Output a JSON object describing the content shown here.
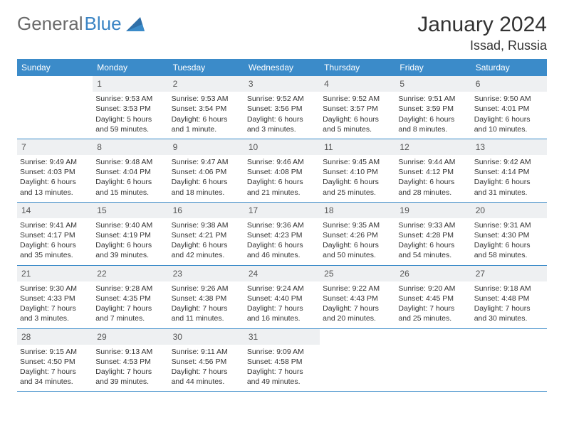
{
  "brand": {
    "part1": "General",
    "part2": "Blue"
  },
  "title": "January 2024",
  "location": "Issad, Russia",
  "colors": {
    "header_bg": "#3b8bc9",
    "header_text": "#ffffff",
    "daynum_bg": "#eef0f2",
    "border": "#3b8bc9",
    "logo_gray": "#6b6b6b",
    "logo_blue": "#3a84c4"
  },
  "day_names": [
    "Sunday",
    "Monday",
    "Tuesday",
    "Wednesday",
    "Thursday",
    "Friday",
    "Saturday"
  ],
  "weeks": [
    [
      {
        "n": "",
        "l1": "",
        "l2": "",
        "l3": "",
        "l4": "",
        "empty": true
      },
      {
        "n": "1",
        "l1": "Sunrise: 9:53 AM",
        "l2": "Sunset: 3:53 PM",
        "l3": "Daylight: 5 hours",
        "l4": "and 59 minutes."
      },
      {
        "n": "2",
        "l1": "Sunrise: 9:53 AM",
        "l2": "Sunset: 3:54 PM",
        "l3": "Daylight: 6 hours",
        "l4": "and 1 minute."
      },
      {
        "n": "3",
        "l1": "Sunrise: 9:52 AM",
        "l2": "Sunset: 3:56 PM",
        "l3": "Daylight: 6 hours",
        "l4": "and 3 minutes."
      },
      {
        "n": "4",
        "l1": "Sunrise: 9:52 AM",
        "l2": "Sunset: 3:57 PM",
        "l3": "Daylight: 6 hours",
        "l4": "and 5 minutes."
      },
      {
        "n": "5",
        "l1": "Sunrise: 9:51 AM",
        "l2": "Sunset: 3:59 PM",
        "l3": "Daylight: 6 hours",
        "l4": "and 8 minutes."
      },
      {
        "n": "6",
        "l1": "Sunrise: 9:50 AM",
        "l2": "Sunset: 4:01 PM",
        "l3": "Daylight: 6 hours",
        "l4": "and 10 minutes."
      }
    ],
    [
      {
        "n": "7",
        "l1": "Sunrise: 9:49 AM",
        "l2": "Sunset: 4:03 PM",
        "l3": "Daylight: 6 hours",
        "l4": "and 13 minutes."
      },
      {
        "n": "8",
        "l1": "Sunrise: 9:48 AM",
        "l2": "Sunset: 4:04 PM",
        "l3": "Daylight: 6 hours",
        "l4": "and 15 minutes."
      },
      {
        "n": "9",
        "l1": "Sunrise: 9:47 AM",
        "l2": "Sunset: 4:06 PM",
        "l3": "Daylight: 6 hours",
        "l4": "and 18 minutes."
      },
      {
        "n": "10",
        "l1": "Sunrise: 9:46 AM",
        "l2": "Sunset: 4:08 PM",
        "l3": "Daylight: 6 hours",
        "l4": "and 21 minutes."
      },
      {
        "n": "11",
        "l1": "Sunrise: 9:45 AM",
        "l2": "Sunset: 4:10 PM",
        "l3": "Daylight: 6 hours",
        "l4": "and 25 minutes."
      },
      {
        "n": "12",
        "l1": "Sunrise: 9:44 AM",
        "l2": "Sunset: 4:12 PM",
        "l3": "Daylight: 6 hours",
        "l4": "and 28 minutes."
      },
      {
        "n": "13",
        "l1": "Sunrise: 9:42 AM",
        "l2": "Sunset: 4:14 PM",
        "l3": "Daylight: 6 hours",
        "l4": "and 31 minutes."
      }
    ],
    [
      {
        "n": "14",
        "l1": "Sunrise: 9:41 AM",
        "l2": "Sunset: 4:17 PM",
        "l3": "Daylight: 6 hours",
        "l4": "and 35 minutes."
      },
      {
        "n": "15",
        "l1": "Sunrise: 9:40 AM",
        "l2": "Sunset: 4:19 PM",
        "l3": "Daylight: 6 hours",
        "l4": "and 39 minutes."
      },
      {
        "n": "16",
        "l1": "Sunrise: 9:38 AM",
        "l2": "Sunset: 4:21 PM",
        "l3": "Daylight: 6 hours",
        "l4": "and 42 minutes."
      },
      {
        "n": "17",
        "l1": "Sunrise: 9:36 AM",
        "l2": "Sunset: 4:23 PM",
        "l3": "Daylight: 6 hours",
        "l4": "and 46 minutes."
      },
      {
        "n": "18",
        "l1": "Sunrise: 9:35 AM",
        "l2": "Sunset: 4:26 PM",
        "l3": "Daylight: 6 hours",
        "l4": "and 50 minutes."
      },
      {
        "n": "19",
        "l1": "Sunrise: 9:33 AM",
        "l2": "Sunset: 4:28 PM",
        "l3": "Daylight: 6 hours",
        "l4": "and 54 minutes."
      },
      {
        "n": "20",
        "l1": "Sunrise: 9:31 AM",
        "l2": "Sunset: 4:30 PM",
        "l3": "Daylight: 6 hours",
        "l4": "and 58 minutes."
      }
    ],
    [
      {
        "n": "21",
        "l1": "Sunrise: 9:30 AM",
        "l2": "Sunset: 4:33 PM",
        "l3": "Daylight: 7 hours",
        "l4": "and 3 minutes."
      },
      {
        "n": "22",
        "l1": "Sunrise: 9:28 AM",
        "l2": "Sunset: 4:35 PM",
        "l3": "Daylight: 7 hours",
        "l4": "and 7 minutes."
      },
      {
        "n": "23",
        "l1": "Sunrise: 9:26 AM",
        "l2": "Sunset: 4:38 PM",
        "l3": "Daylight: 7 hours",
        "l4": "and 11 minutes."
      },
      {
        "n": "24",
        "l1": "Sunrise: 9:24 AM",
        "l2": "Sunset: 4:40 PM",
        "l3": "Daylight: 7 hours",
        "l4": "and 16 minutes."
      },
      {
        "n": "25",
        "l1": "Sunrise: 9:22 AM",
        "l2": "Sunset: 4:43 PM",
        "l3": "Daylight: 7 hours",
        "l4": "and 20 minutes."
      },
      {
        "n": "26",
        "l1": "Sunrise: 9:20 AM",
        "l2": "Sunset: 4:45 PM",
        "l3": "Daylight: 7 hours",
        "l4": "and 25 minutes."
      },
      {
        "n": "27",
        "l1": "Sunrise: 9:18 AM",
        "l2": "Sunset: 4:48 PM",
        "l3": "Daylight: 7 hours",
        "l4": "and 30 minutes."
      }
    ],
    [
      {
        "n": "28",
        "l1": "Sunrise: 9:15 AM",
        "l2": "Sunset: 4:50 PM",
        "l3": "Daylight: 7 hours",
        "l4": "and 34 minutes."
      },
      {
        "n": "29",
        "l1": "Sunrise: 9:13 AM",
        "l2": "Sunset: 4:53 PM",
        "l3": "Daylight: 7 hours",
        "l4": "and 39 minutes."
      },
      {
        "n": "30",
        "l1": "Sunrise: 9:11 AM",
        "l2": "Sunset: 4:56 PM",
        "l3": "Daylight: 7 hours",
        "l4": "and 44 minutes."
      },
      {
        "n": "31",
        "l1": "Sunrise: 9:09 AM",
        "l2": "Sunset: 4:58 PM",
        "l3": "Daylight: 7 hours",
        "l4": "and 49 minutes."
      },
      {
        "n": "",
        "l1": "",
        "l2": "",
        "l3": "",
        "l4": "",
        "empty": true
      },
      {
        "n": "",
        "l1": "",
        "l2": "",
        "l3": "",
        "l4": "",
        "empty": true
      },
      {
        "n": "",
        "l1": "",
        "l2": "",
        "l3": "",
        "l4": "",
        "empty": true
      }
    ]
  ]
}
